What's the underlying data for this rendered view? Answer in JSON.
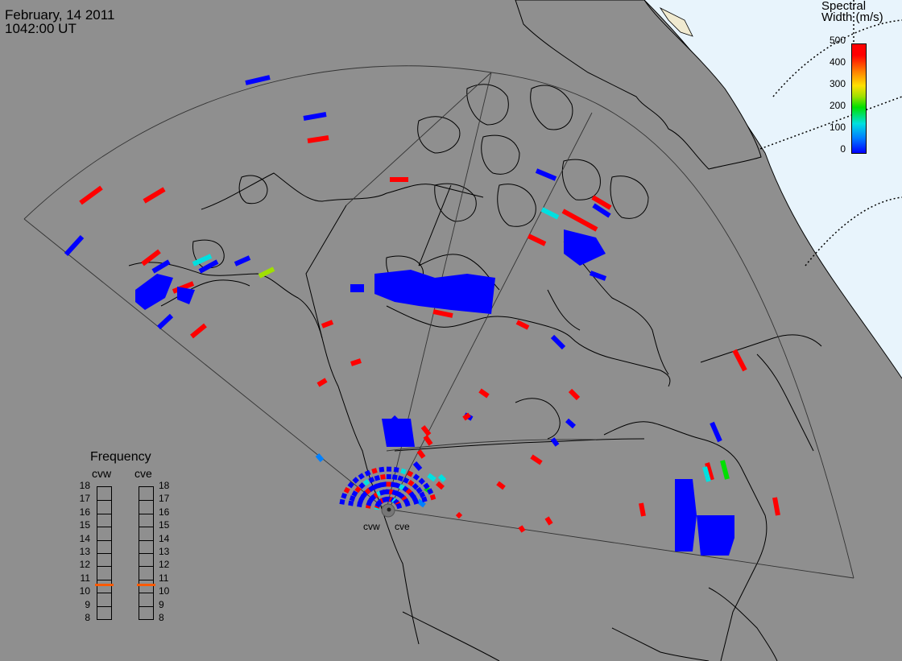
{
  "header": {
    "date": "February, 14 2011",
    "time": "1042:00 UT"
  },
  "colorbar": {
    "title_line1": "Spectral",
    "title_line2": "Width (m/s)",
    "ticks": [
      "500",
      "400",
      "300",
      "200",
      "100",
      "0"
    ],
    "colors": [
      "#0000ff",
      "#0080ff",
      "#00e0e0",
      "#00e000",
      "#ffe000",
      "#ff8000",
      "#ff0000"
    ]
  },
  "radars": {
    "west": "cvw",
    "east": "cve"
  },
  "frequency": {
    "title": "Frequency",
    "left_label": "cvw",
    "right_label": "cve",
    "scale": [
      "18",
      "17",
      "16",
      "15",
      "14",
      "13",
      "12",
      "11",
      "10",
      "9",
      "8"
    ],
    "cvw_mhz": 10.6,
    "cve_mhz": 10.6
  },
  "colors": {
    "background": "#8f8f8f",
    "polar_cap": "#e8f4fc",
    "marker": "#ff5a00"
  }
}
